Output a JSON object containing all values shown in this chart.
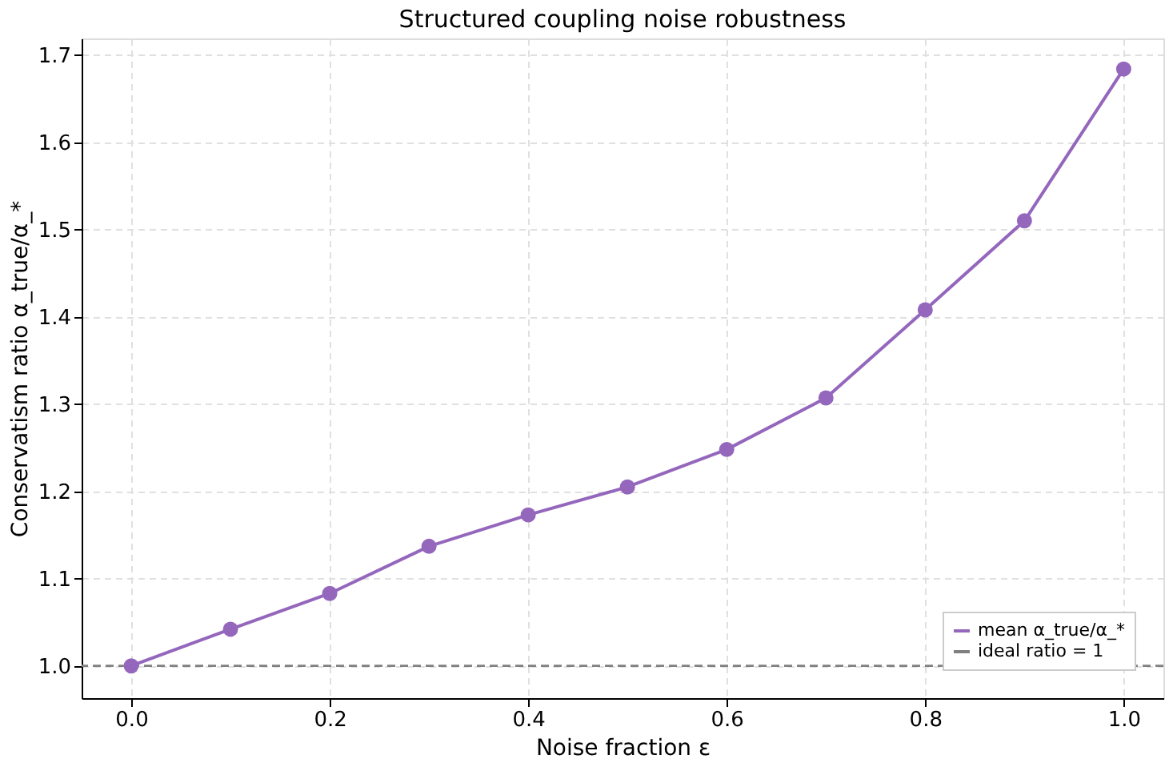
{
  "chart_data": {
    "type": "line",
    "title": "Structured coupling noise robustness",
    "xlabel": "Noise fraction ε",
    "ylabel": "Conservatism ratio α_true/α_*",
    "x": [
      0.0,
      0.1,
      0.2,
      0.3,
      0.4,
      0.5,
      0.6,
      0.7,
      0.8,
      0.9,
      1.0
    ],
    "series": [
      {
        "name": "mean α_true/α_*",
        "color": "#9467bd",
        "values": [
          1.0,
          1.042,
          1.083,
          1.137,
          1.173,
          1.205,
          1.248,
          1.307,
          1.408,
          1.51,
          1.684
        ]
      }
    ],
    "ref_lines": [
      {
        "axis": "y",
        "value": 1.0,
        "label": "ideal ratio = 1",
        "color": "#808080",
        "line_style": "dashed"
      }
    ],
    "xlim": [
      -0.05,
      1.04
    ],
    "ylim": [
      0.963,
      1.719
    ],
    "xticks": [
      {
        "value": 0.0,
        "label": "0.0"
      },
      {
        "value": 0.2,
        "label": "0.2"
      },
      {
        "value": 0.4,
        "label": "0.4"
      },
      {
        "value": 0.6,
        "label": "0.6"
      },
      {
        "value": 0.8,
        "label": "0.8"
      },
      {
        "value": 1.0,
        "label": "1.0"
      }
    ],
    "yticks": [
      {
        "value": 1.0,
        "label": "1.0"
      },
      {
        "value": 1.1,
        "label": "1.1"
      },
      {
        "value": 1.2,
        "label": "1.2"
      },
      {
        "value": 1.3,
        "label": "1.3"
      },
      {
        "value": 1.4,
        "label": "1.4"
      },
      {
        "value": 1.5,
        "label": "1.5"
      },
      {
        "value": 1.6,
        "label": "1.6"
      },
      {
        "value": 1.7,
        "label": "1.7"
      }
    ],
    "grid": true,
    "legend": "bottom right",
    "marker": "circle",
    "line_style": "solid"
  }
}
